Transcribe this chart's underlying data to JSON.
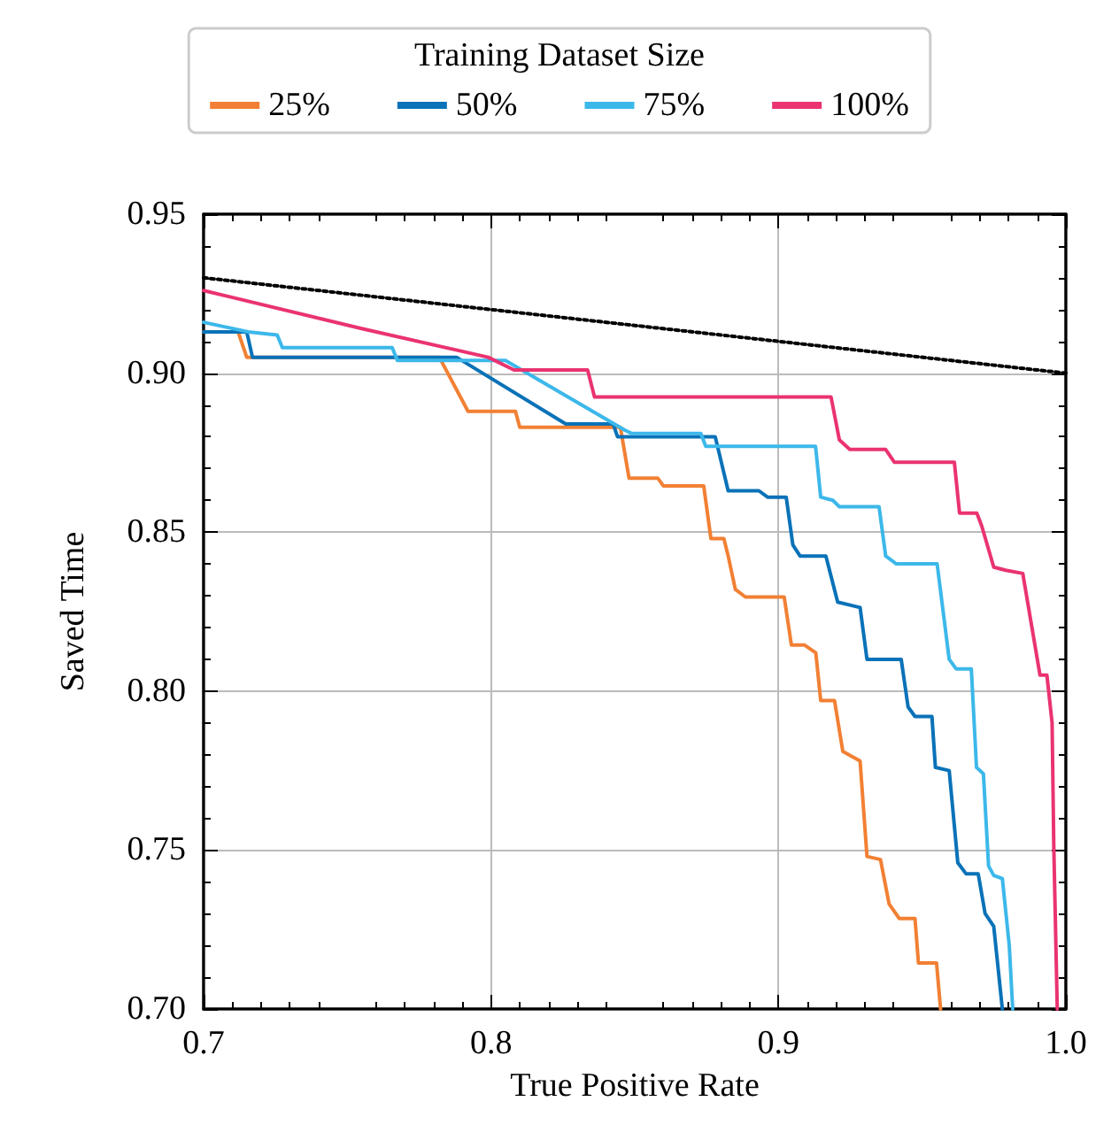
{
  "chart_data": {
    "type": "line",
    "xlabel": "True Positive Rate",
    "ylabel": "Saved Time",
    "legend_title": "Training Dataset Size",
    "legend": "top",
    "grid": true,
    "line_style": "solid",
    "marker": "none",
    "xlim": [
      0.7,
      1.0
    ],
    "xticks": [
      {
        "value": 0.7,
        "label": "0.7"
      },
      {
        "value": 0.8,
        "label": "0.8"
      },
      {
        "value": 0.9,
        "label": "0.9"
      },
      {
        "value": 1.0,
        "label": "1.0"
      }
    ],
    "ylim": [
      0.7,
      0.95
    ],
    "yticks": [
      {
        "value": 0.7,
        "label": "0.70"
      },
      {
        "value": 0.75,
        "label": "0.75"
      },
      {
        "value": 0.8,
        "label": "0.80"
      },
      {
        "value": 0.85,
        "label": "0.85"
      },
      {
        "value": 0.9,
        "label": "0.90"
      },
      {
        "value": 0.95,
        "label": "0.95"
      }
    ],
    "series": [
      {
        "name": "25%",
        "color": "#f28034",
        "x": [
          0.7,
          0.712,
          0.715,
          0.782,
          0.792,
          0.8085,
          0.81,
          0.845,
          0.848,
          0.858,
          0.86,
          0.874,
          0.8765,
          0.881,
          0.8825,
          0.885,
          0.8885,
          0.902,
          0.9045,
          0.909,
          0.913,
          0.9147,
          0.9195,
          0.9224,
          0.9284,
          0.9308,
          0.9355,
          0.9385,
          0.942,
          0.9475,
          0.9487,
          0.955,
          0.9564
        ],
        "values": [
          0.913,
          0.913,
          0.905,
          0.905,
          0.888,
          0.888,
          0.883,
          0.883,
          0.867,
          0.867,
          0.8645,
          0.8645,
          0.848,
          0.848,
          0.8425,
          0.832,
          0.8296,
          0.8296,
          0.8145,
          0.8145,
          0.812,
          0.797,
          0.797,
          0.781,
          0.778,
          0.748,
          0.747,
          0.733,
          0.7285,
          0.7285,
          0.7145,
          0.7145,
          0.7
        ]
      },
      {
        "name": "50%",
        "color": "#0a72b8",
        "x": [
          0.7,
          0.715,
          0.717,
          0.788,
          0.826,
          0.8425,
          0.844,
          0.878,
          0.8825,
          0.8932,
          0.8962,
          0.9027,
          0.905,
          0.9075,
          0.9165,
          0.9206,
          0.9284,
          0.9308,
          0.9427,
          0.9451,
          0.9475,
          0.9534,
          0.9546,
          0.9594,
          0.9624,
          0.9653,
          0.9695,
          0.9719,
          0.9749,
          0.9779
        ],
        "values": [
          0.913,
          0.913,
          0.905,
          0.905,
          0.884,
          0.884,
          0.88,
          0.88,
          0.863,
          0.863,
          0.861,
          0.861,
          0.846,
          0.8425,
          0.8425,
          0.828,
          0.8263,
          0.81,
          0.81,
          0.795,
          0.792,
          0.792,
          0.776,
          0.775,
          0.746,
          0.7425,
          0.7425,
          0.73,
          0.726,
          0.7
        ]
      },
      {
        "name": "75%",
        "color": "#3cb8ea",
        "x": [
          0.7,
          0.7155,
          0.7256,
          0.7274,
          0.7656,
          0.7674,
          0.805,
          0.8467,
          0.849,
          0.873,
          0.8747,
          0.9129,
          0.9147,
          0.9189,
          0.9212,
          0.935,
          0.9373,
          0.941,
          0.9552,
          0.9594,
          0.9618,
          0.9671,
          0.9689,
          0.9713,
          0.9731,
          0.9749,
          0.9779,
          0.9803,
          0.9815
        ],
        "values": [
          0.916,
          0.913,
          0.912,
          0.908,
          0.908,
          0.904,
          0.904,
          0.882,
          0.881,
          0.881,
          0.877,
          0.877,
          0.861,
          0.86,
          0.858,
          0.858,
          0.8425,
          0.84,
          0.84,
          0.81,
          0.807,
          0.807,
          0.776,
          0.774,
          0.745,
          0.742,
          0.741,
          0.72,
          0.7
        ]
      },
      {
        "name": "100%",
        "color": "#ea3370",
        "x": [
          0.7,
          0.755,
          0.799,
          0.808,
          0.8336,
          0.836,
          0.9183,
          0.9212,
          0.9248,
          0.9373,
          0.9403,
          0.9612,
          0.963,
          0.969,
          0.9707,
          0.9749,
          0.979,
          0.985,
          0.988,
          0.991,
          0.9934,
          0.9952,
          0.9958,
          0.997
        ],
        "values": [
          0.926,
          0.914,
          0.905,
          0.901,
          0.901,
          0.8925,
          0.8925,
          0.879,
          0.876,
          0.876,
          0.872,
          0.872,
          0.856,
          0.856,
          0.852,
          0.839,
          0.838,
          0.837,
          0.821,
          0.805,
          0.805,
          0.79,
          0.751,
          0.7
        ]
      },
      {
        "color": "#000000",
        "line_style": "dotted",
        "x": [
          0.7,
          1.0
        ],
        "values": [
          0.93,
          0.9
        ]
      }
    ]
  }
}
